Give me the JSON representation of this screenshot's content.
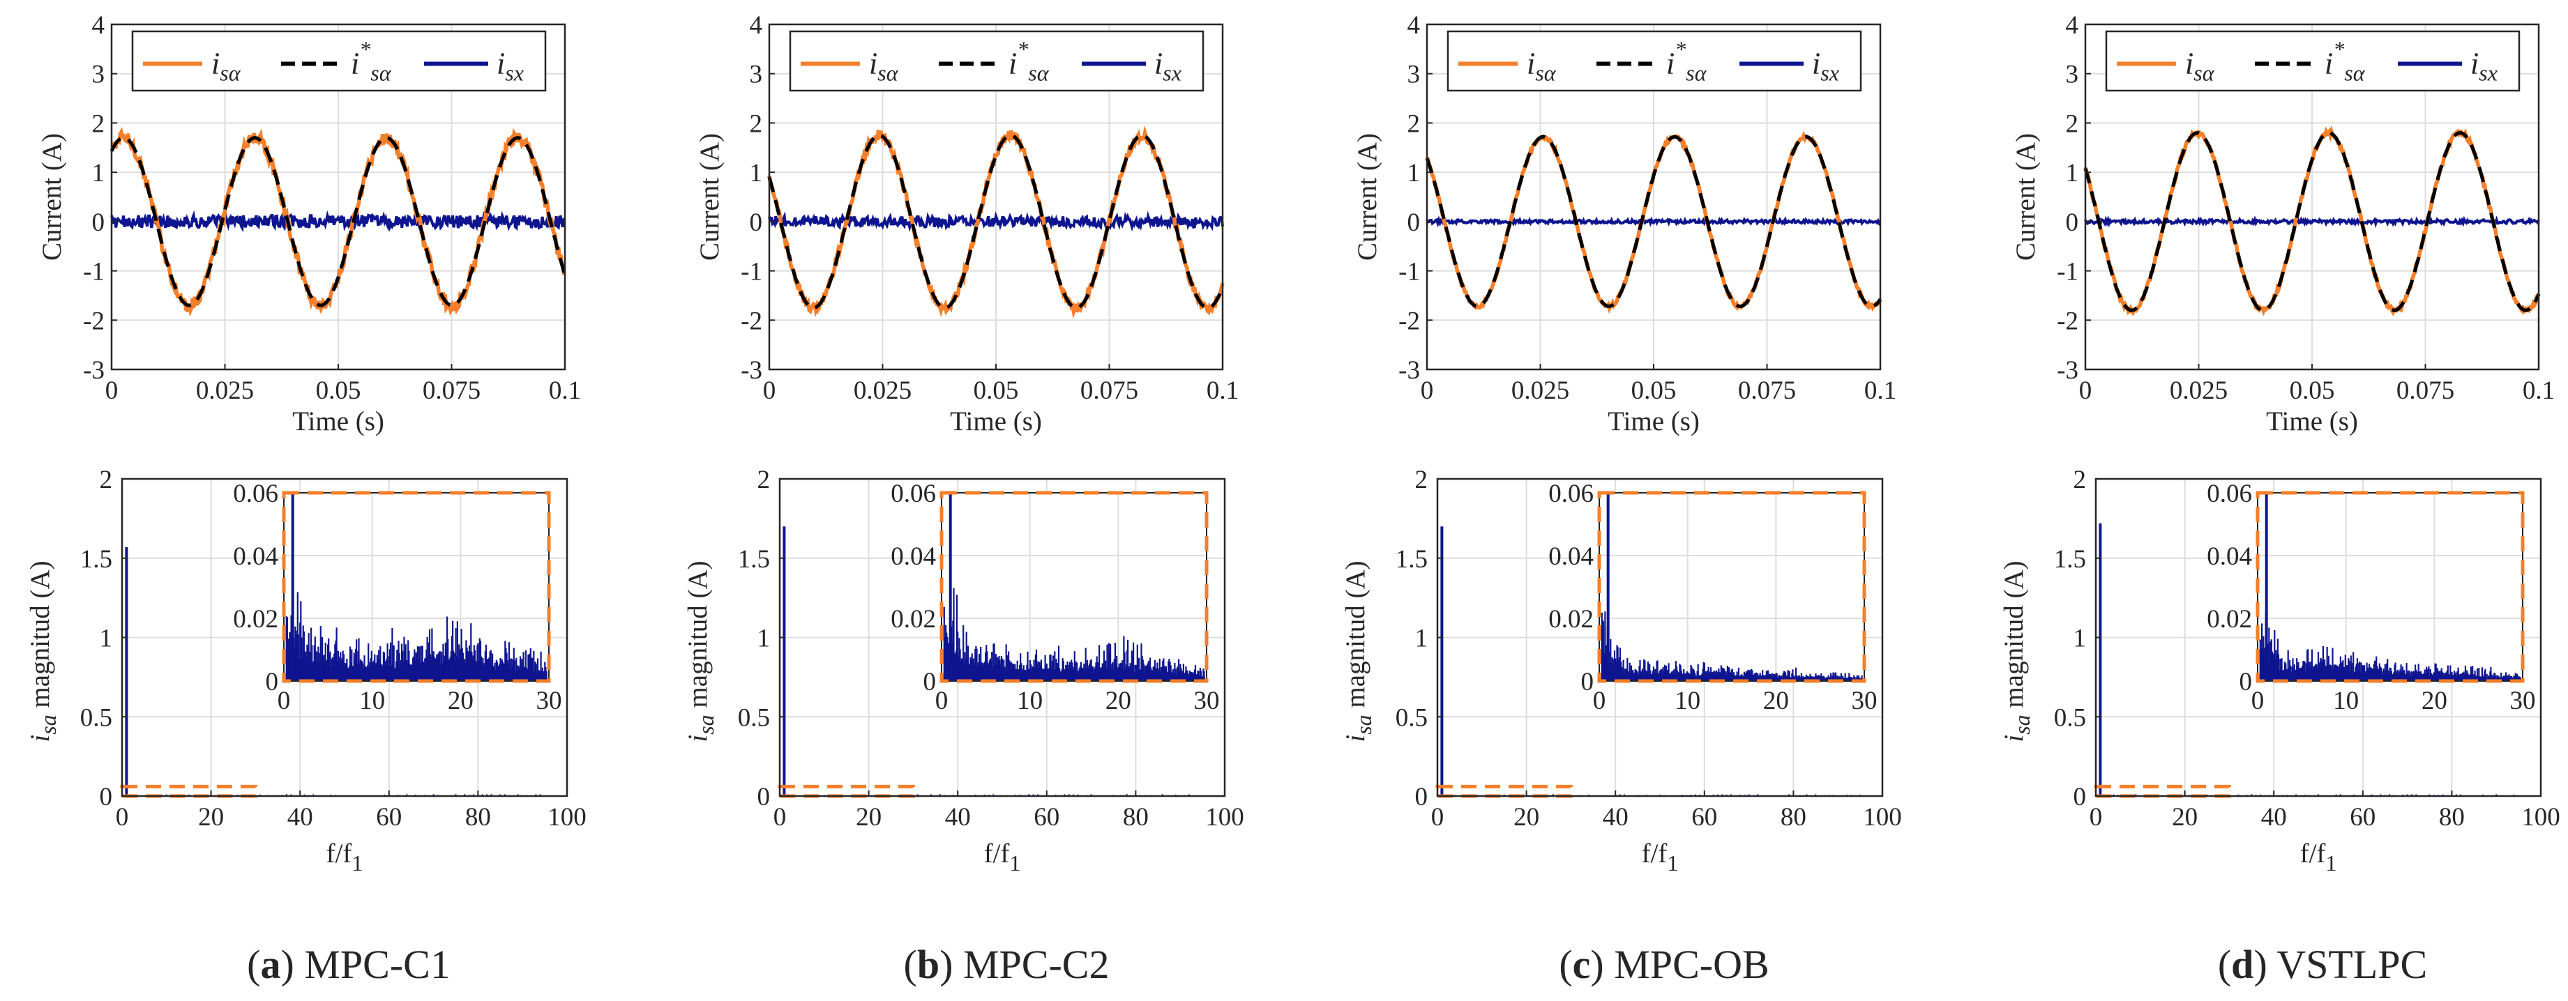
{
  "colors": {
    "orange": "#F57F2A",
    "black": "#000000",
    "blue": "#0E158F",
    "grid": "#DDDDDD",
    "axis": "#262626"
  },
  "legend": {
    "labels": [
      "i_sα",
      "i*_sα",
      "i_sx"
    ]
  },
  "chart_data": [
    {
      "id": "a",
      "caption_letter": "(a)",
      "caption_name": "MPC-C1",
      "time_plot": {
        "type": "line",
        "xlabel": "Time (s)",
        "ylabel": "Current (A)",
        "xlim": [
          0,
          0.1
        ],
        "ylim": [
          -3,
          4
        ],
        "xticks": [
          "0",
          "0.025",
          "0.05",
          "0.075",
          "0.1"
        ],
        "yticks": [
          "-3",
          "-2",
          "-1",
          "0",
          "1",
          "2",
          "3",
          "4"
        ],
        "frequency_hz": 34.5,
        "amplitude_a": 1.7,
        "phase_rad": 1.0,
        "ripple_alpha_a": 0.13,
        "ripple_x_a": 0.13,
        "series": [
          {
            "name": "i_sα",
            "color": "#F57F2A",
            "style": "solid"
          },
          {
            "name": "i*_sα",
            "color": "#000000",
            "style": "dashed"
          },
          {
            "name": "i_sx",
            "color": "#0E158F",
            "style": "solid"
          }
        ]
      },
      "spectrum_plot": {
        "type": "bar",
        "xlabel": "f/f1",
        "ylabel": "i_sa magnitud (A)",
        "xlim": [
          0,
          100
        ],
        "ylim": [
          0,
          2
        ],
        "xticks": [
          "0",
          "20",
          "40",
          "60",
          "80",
          "100"
        ],
        "yticks": [
          "0",
          "0.5",
          "1",
          "1.5",
          "2"
        ],
        "fundamental_a": 1.57,
        "zoom_box": {
          "xlim": [
            0,
            30
          ],
          "ylim": [
            0,
            0.06
          ]
        },
        "inset": {
          "xlim": [
            0,
            30
          ],
          "ylim": [
            0,
            0.06
          ],
          "xticks": [
            "0",
            "10",
            "20",
            "30"
          ],
          "yticks": [
            "0",
            "0.02",
            "0.04",
            "0.06"
          ],
          "harmonic_envelope": [
            [
              1,
              0.03
            ],
            [
              3,
              0.018
            ],
            [
              8,
              0.012
            ],
            [
              14,
              0.014
            ],
            [
              19,
              0.019
            ],
            [
              24,
              0.012
            ],
            [
              30,
              0.008
            ]
          ]
        }
      }
    },
    {
      "id": "b",
      "caption_letter": "(b)",
      "caption_name": "MPC-C2",
      "time_plot": {
        "type": "line",
        "xlabel": "Time (s)",
        "ylabel": "Current (A)",
        "xlim": [
          0,
          0.1
        ],
        "ylim": [
          -3,
          4
        ],
        "xticks": [
          "0",
          "0.025",
          "0.05",
          "0.075",
          "0.1"
        ],
        "yticks": [
          "-3",
          "-2",
          "-1",
          "0",
          "1",
          "2",
          "3",
          "4"
        ],
        "frequency_hz": 34.5,
        "amplitude_a": 1.75,
        "phase_rad": 2.6,
        "ripple_alpha_a": 0.09,
        "ripple_x_a": 0.11,
        "series": [
          {
            "name": "i_sα",
            "color": "#F57F2A",
            "style": "solid"
          },
          {
            "name": "i*_sα",
            "color": "#000000",
            "style": "dashed"
          },
          {
            "name": "i_sx",
            "color": "#0E158F",
            "style": "solid"
          }
        ]
      },
      "spectrum_plot": {
        "type": "bar",
        "xlabel": "f/f1",
        "ylabel": "i_sa magnitud (A)",
        "xlim": [
          0,
          100
        ],
        "ylim": [
          0,
          2
        ],
        "xticks": [
          "0",
          "20",
          "40",
          "60",
          "80",
          "100"
        ],
        "yticks": [
          "0",
          "0.5",
          "1",
          "1.5",
          "2"
        ],
        "fundamental_a": 1.7,
        "zoom_box": {
          "xlim": [
            0,
            30
          ],
          "ylim": [
            0,
            0.06
          ]
        },
        "inset": {
          "xlim": [
            0,
            30
          ],
          "ylim": [
            0,
            0.06
          ],
          "xticks": [
            "0",
            "10",
            "20",
            "30"
          ],
          "yticks": [
            "0",
            "0.02",
            "0.04",
            "0.06"
          ],
          "harmonic_envelope": [
            [
              1,
              0.03
            ],
            [
              3,
              0.014
            ],
            [
              8,
              0.009
            ],
            [
              14,
              0.009
            ],
            [
              20,
              0.012
            ],
            [
              25,
              0.008
            ],
            [
              30,
              0.004
            ]
          ]
        }
      }
    },
    {
      "id": "c",
      "caption_letter": "(c)",
      "caption_name": "MPC-OB",
      "time_plot": {
        "type": "line",
        "xlabel": "Time (s)",
        "ylabel": "Current (A)",
        "xlim": [
          0,
          0.1
        ],
        "ylim": [
          -3,
          4
        ],
        "xticks": [
          "0",
          "0.025",
          "0.05",
          "0.075",
          "0.1"
        ],
        "yticks": [
          "-3",
          "-2",
          "-1",
          "0",
          "1",
          "2",
          "3",
          "4"
        ],
        "frequency_hz": 34.5,
        "amplitude_a": 1.72,
        "phase_rad": 2.3,
        "ripple_alpha_a": 0.04,
        "ripple_x_a": 0.035,
        "series": [
          {
            "name": "i_sα",
            "color": "#F57F2A",
            "style": "solid"
          },
          {
            "name": "i*_sα",
            "color": "#000000",
            "style": "dashed"
          },
          {
            "name": "i_sx",
            "color": "#0E158F",
            "style": "solid"
          }
        ]
      },
      "spectrum_plot": {
        "type": "bar",
        "xlabel": "f/f1",
        "ylabel": "i_sa magnitud (A)",
        "xlim": [
          0,
          100
        ],
        "ylim": [
          0,
          2
        ],
        "xticks": [
          "0",
          "20",
          "40",
          "60",
          "80",
          "100"
        ],
        "yticks": [
          "0",
          "0.5",
          "1",
          "1.5",
          "2"
        ],
        "fundamental_a": 1.7,
        "zoom_box": {
          "xlim": [
            0,
            30
          ],
          "ylim": [
            0,
            0.06
          ]
        },
        "inset": {
          "xlim": [
            0,
            30
          ],
          "ylim": [
            0,
            0.06
          ],
          "xticks": [
            "0",
            "10",
            "20",
            "30"
          ],
          "yticks": [
            "0",
            "0.02",
            "0.04",
            "0.06"
          ],
          "harmonic_envelope": [
            [
              1,
              0.02
            ],
            [
              3,
              0.007
            ],
            [
              8,
              0.006
            ],
            [
              14,
              0.005
            ],
            [
              20,
              0.004
            ],
            [
              25,
              0.003
            ],
            [
              30,
              0.002
            ]
          ]
        }
      }
    },
    {
      "id": "d",
      "caption_letter": "(d)",
      "caption_name": "VSTLPC",
      "time_plot": {
        "type": "line",
        "xlabel": "Time (s)",
        "ylabel": "Current (A)",
        "xlim": [
          0,
          0.1
        ],
        "ylim": [
          -3,
          4
        ],
        "xticks": [
          "0",
          "0.025",
          "0.05",
          "0.075",
          "0.1"
        ],
        "yticks": [
          "-3",
          "-2",
          "-1",
          "0",
          "1",
          "2",
          "3",
          "4"
        ],
        "frequency_hz": 34.5,
        "amplitude_a": 1.8,
        "phase_rad": 2.5,
        "ripple_alpha_a": 0.05,
        "ripple_x_a": 0.04,
        "series": [
          {
            "name": "i_sα",
            "color": "#F57F2A",
            "style": "solid"
          },
          {
            "name": "i*_sα",
            "color": "#000000",
            "style": "dashed"
          },
          {
            "name": "i_sx",
            "color": "#0E158F",
            "style": "solid"
          }
        ]
      },
      "spectrum_plot": {
        "type": "bar",
        "xlabel": "f/f1",
        "ylabel": "i_sa magnitud (A)",
        "xlim": [
          0,
          100
        ],
        "ylim": [
          0,
          2
        ],
        "xticks": [
          "0",
          "20",
          "40",
          "60",
          "80",
          "100"
        ],
        "yticks": [
          "0",
          "0.5",
          "1",
          "1.5",
          "2"
        ],
        "fundamental_a": 1.72,
        "zoom_box": {
          "xlim": [
            0,
            30
          ],
          "ylim": [
            0,
            0.06
          ]
        },
        "inset": {
          "xlim": [
            0,
            30
          ],
          "ylim": [
            0,
            0.06
          ],
          "xticks": [
            "0",
            "10",
            "20",
            "30"
          ],
          "yticks": [
            "0",
            "0.02",
            "0.04",
            "0.06"
          ],
          "harmonic_envelope": [
            [
              1,
              0.025
            ],
            [
              3,
              0.009
            ],
            [
              6,
              0.012
            ],
            [
              10,
              0.009
            ],
            [
              16,
              0.006
            ],
            [
              22,
              0.005
            ],
            [
              30,
              0.003
            ]
          ]
        }
      }
    }
  ]
}
